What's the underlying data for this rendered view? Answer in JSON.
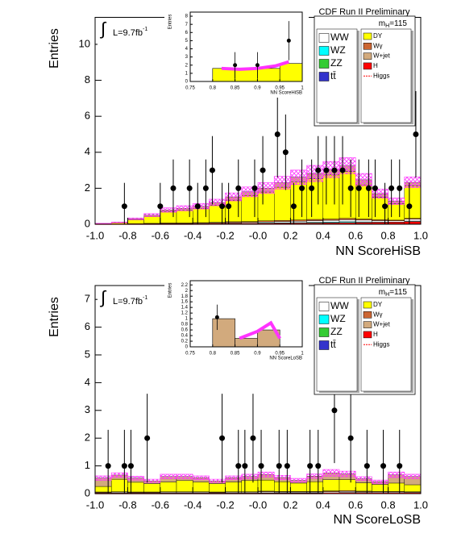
{
  "chart_data": [
    {
      "type": "stacked-histogram",
      "title": "CDF Run II Preliminary",
      "ylabel": "Entries",
      "xlabel": "NN ScoreHiSB",
      "lumi": {
        "integral": "∫",
        "text": "L=9.7fb",
        "sup": "-1"
      },
      "mass_label": {
        "main": "m",
        "sub": "H",
        "rest": "=115"
      },
      "xlim": [
        -1,
        1
      ],
      "ylim": [
        0,
        11.5
      ],
      "xticks": [
        {
          "value": -1,
          "label": "-1.0"
        },
        -0.8,
        -0.6,
        -0.4,
        -0.2,
        {
          "value": 0,
          "label": "-0.0"
        },
        0.2,
        0.4,
        0.6,
        0.8,
        {
          "value": 1,
          "label": "1.0"
        }
      ],
      "yticks": [
        0,
        2,
        4,
        6,
        8,
        10
      ],
      "bins": [
        -1,
        -0.9,
        -0.8,
        -0.7,
        -0.6,
        -0.5,
        -0.4,
        -0.3,
        -0.2,
        -0.1,
        0,
        0.1,
        0.2,
        0.3,
        0.4,
        0.5,
        0.6,
        0.7,
        0.8,
        0.9,
        1
      ],
      "series": [
        {
          "name": "WW",
          "color": "#ffffff",
          "values": [
            0,
            0,
            0.01,
            0.01,
            0.02,
            0.02,
            0.03,
            0.03,
            0.04,
            0.05,
            0.06,
            0.07,
            0.08,
            0.09,
            0.1,
            0.11,
            0.1,
            0.08,
            0.07,
            0.1
          ]
        },
        {
          "name": "WZ",
          "color": "#00ffff",
          "values": [
            0,
            0,
            0,
            0.01,
            0.01,
            0.01,
            0.01,
            0.02,
            0.02,
            0.02,
            0.03,
            0.03,
            0.04,
            0.04,
            0.04,
            0.05,
            0.04,
            0.03,
            0.03,
            0.04
          ]
        },
        {
          "name": "ZZ",
          "color": "#33cc33",
          "values": [
            0,
            0,
            0,
            0.01,
            0.01,
            0.01,
            0.01,
            0.01,
            0.02,
            0.02,
            0.02,
            0.03,
            0.03,
            0.03,
            0.04,
            0.04,
            0.03,
            0.03,
            0.02,
            0.03
          ]
        },
        {
          "name": "tt̄",
          "color": "#3333cc",
          "values": [
            0,
            0,
            0,
            0,
            0,
            0,
            0,
            0.01,
            0.01,
            0.01,
            0.01,
            0.01,
            0.01,
            0.02,
            0.02,
            0.02,
            0.02,
            0.01,
            0.01,
            0.01
          ]
        },
        {
          "name": "DY",
          "color": "#ffff00",
          "values": [
            0.03,
            0.07,
            0.22,
            0.38,
            0.62,
            0.7,
            0.78,
            0.95,
            1.2,
            1.45,
            1.6,
            1.85,
            2.1,
            2.25,
            2.45,
            2.6,
            1.9,
            1.25,
            0.9,
            1.8
          ]
        },
        {
          "name": "Wγ",
          "color": "#cc6633",
          "values": [
            0,
            0.01,
            0.02,
            0.02,
            0.03,
            0.03,
            0.04,
            0.04,
            0.05,
            0.05,
            0.06,
            0.06,
            0.07,
            0.07,
            0.07,
            0.08,
            0.06,
            0.05,
            0.04,
            0.05
          ]
        },
        {
          "name": "W+jet",
          "color": "#d2aa7d",
          "values": [
            0.01,
            0.02,
            0.05,
            0.08,
            0.1,
            0.12,
            0.13,
            0.15,
            0.18,
            0.2,
            0.22,
            0.25,
            0.27,
            0.3,
            0.3,
            0.32,
            0.28,
            0.2,
            0.15,
            0.2
          ]
        },
        {
          "name": "H",
          "color": "#ff0000",
          "values": [
            0,
            0,
            0,
            0,
            0,
            0,
            0,
            0,
            0,
            0,
            0.01,
            0.01,
            0.01,
            0.02,
            0.02,
            0.03,
            0.04,
            0.05,
            0.06,
            0.1
          ]
        },
        {
          "name": "Higgs",
          "color": "#ff0000",
          "style": "line",
          "values": [
            0,
            0,
            0,
            0,
            0,
            0,
            0,
            0.01,
            0.01,
            0.01,
            0.02,
            0.02,
            0.03,
            0.03,
            0.04,
            0.05,
            0.06,
            0.07,
            0.08,
            0.12
          ]
        }
      ],
      "syst": [
        0.01,
        0.02,
        0.05,
        0.08,
        0.12,
        0.14,
        0.15,
        0.18,
        0.22,
        0.27,
        0.3,
        0.35,
        0.4,
        0.45,
        0.45,
        0.45,
        0.35,
        0.25,
        0.18,
        0.3
      ],
      "syst_color": "#ff33ff",
      "data": {
        "x": [
          -0.82,
          -0.6,
          -0.52,
          -0.42,
          -0.37,
          -0.32,
          -0.28,
          -0.22,
          -0.18,
          -0.12,
          -0.02,
          0.03,
          0.12,
          0.17,
          0.22,
          0.27,
          0.33,
          0.37,
          0.42,
          0.47,
          0.52,
          0.57,
          0.62,
          0.68,
          0.72,
          0.78,
          0.82,
          0.87,
          0.93,
          0.97
        ],
        "values": [
          1,
          1,
          2,
          2,
          1,
          2,
          3,
          1,
          1,
          2,
          2,
          3,
          5,
          4,
          1,
          2,
          2,
          3,
          3,
          3,
          3,
          2,
          2,
          2,
          2,
          1,
          2,
          2,
          1,
          5
        ],
        "yerr": [
          1.3,
          1.3,
          1.6,
          1.6,
          1.3,
          1.6,
          1.9,
          1.3,
          1.3,
          1.6,
          1.6,
          1.9,
          2.4,
          2.1,
          1.3,
          1.6,
          1.6,
          1.9,
          1.9,
          1.9,
          1.9,
          1.6,
          1.6,
          1.6,
          1.6,
          1.3,
          1.6,
          1.6,
          1.3,
          2.4
        ]
      },
      "inset": {
        "xlabel": "NN ScoreHiSB",
        "ylabel": "Entries",
        "xlim": [
          0.75,
          1
        ],
        "ylim": [
          0,
          8.5
        ],
        "xticks": [
          0.75,
          0.8,
          0.85,
          0.9,
          0.95,
          1
        ],
        "yticks": [
          0,
          1,
          2,
          3,
          4,
          5,
          6,
          7,
          8
        ],
        "bins": [
          0.75,
          0.8,
          0.85,
          0.9,
          0.95,
          1
        ],
        "values": [
          0,
          1.6,
          1.6,
          1.6,
          2.2
        ],
        "color": "#ffff00",
        "signal": {
          "color": "#ff33ff",
          "x": [
            0.82,
            0.86,
            0.9,
            0.94,
            0.97
          ],
          "values": [
            1.6,
            1.5,
            1.6,
            1.9,
            2.4
          ]
        },
        "data": {
          "x": [
            0.85,
            0.9,
            0.97
          ],
          "values": [
            2,
            2,
            5
          ],
          "yerr": [
            1.6,
            1.6,
            2.4
          ]
        }
      }
    },
    {
      "type": "stacked-histogram",
      "title": "CDF Run II Preliminary",
      "ylabel": "Entries",
      "xlabel": "NN ScoreLoSB",
      "lumi": {
        "integral": "∫",
        "text": "L=9.7fb",
        "sup": "-1"
      },
      "mass_label": {
        "main": "m",
        "sub": "H",
        "rest": "=115"
      },
      "xlim": [
        -1,
        1
      ],
      "ylim": [
        0,
        7.5
      ],
      "xticks": [
        {
          "value": -1,
          "label": "-1.0"
        },
        -0.8,
        -0.6,
        -0.4,
        -0.2,
        {
          "value": 0,
          "label": "-0.0"
        },
        0.2,
        0.4,
        0.6,
        0.8,
        {
          "value": 1,
          "label": "1.0"
        }
      ],
      "yticks": [
        0,
        1,
        2,
        3,
        4,
        5,
        6,
        7
      ],
      "bins": [
        -1,
        -0.9,
        -0.8,
        -0.7,
        -0.6,
        -0.5,
        -0.4,
        -0.3,
        -0.2,
        -0.1,
        0,
        0.1,
        0.2,
        0.3,
        0.4,
        0.5,
        0.6,
        0.7,
        0.8,
        0.9,
        1
      ],
      "series": [
        {
          "name": "WW",
          "color": "#ffffff",
          "values": [
            0.02,
            0.03,
            0.02,
            0.02,
            0.03,
            0.03,
            0.03,
            0.02,
            0.03,
            0.03,
            0.04,
            0.03,
            0.03,
            0.03,
            0.04,
            0.04,
            0.03,
            0.03,
            0.03,
            0.02
          ]
        },
        {
          "name": "WZ",
          "color": "#00ffff",
          "values": [
            0.01,
            0.01,
            0.01,
            0.01,
            0.01,
            0.01,
            0.01,
            0.01,
            0.01,
            0.01,
            0.01,
            0.01,
            0.01,
            0.01,
            0.01,
            0.01,
            0.01,
            0.01,
            0.01,
            0.01
          ]
        },
        {
          "name": "ZZ",
          "color": "#33cc33",
          "values": [
            0.01,
            0.01,
            0.01,
            0.01,
            0.01,
            0.01,
            0.01,
            0.01,
            0.01,
            0.01,
            0.01,
            0.01,
            0.01,
            0.01,
            0.01,
            0.01,
            0.01,
            0.01,
            0.01,
            0.01
          ]
        },
        {
          "name": "tt̄",
          "color": "#3333cc",
          "values": [
            0,
            0,
            0,
            0,
            0,
            0,
            0,
            0,
            0,
            0,
            0.01,
            0.01,
            0.01,
            0.01,
            0.01,
            0.01,
            0.01,
            0,
            0,
            0
          ]
        },
        {
          "name": "DY",
          "color": "#ffff00",
          "values": [
            0.2,
            0.45,
            0.35,
            0.3,
            0.35,
            0.4,
            0.35,
            0.3,
            0.35,
            0.4,
            0.4,
            0.35,
            0.3,
            0.35,
            0.4,
            0.4,
            0.3,
            0.25,
            0.3,
            0.25
          ]
        },
        {
          "name": "Wγ",
          "color": "#cc6633",
          "values": [
            0.02,
            0.02,
            0.02,
            0.02,
            0.02,
            0.02,
            0.02,
            0.02,
            0.02,
            0.02,
            0.02,
            0.02,
            0.02,
            0.02,
            0.03,
            0.03,
            0.02,
            0.02,
            0.02,
            0.02
          ]
        },
        {
          "name": "W+jet",
          "color": "#d2aa7d",
          "values": [
            0.3,
            0.15,
            0.15,
            0.1,
            0.2,
            0.15,
            0.15,
            0.1,
            0.15,
            0.15,
            0.2,
            0.15,
            0.1,
            0.2,
            0.25,
            0.2,
            0.15,
            0.1,
            0.3,
            0.3
          ]
        },
        {
          "name": "H",
          "color": "#ff0000",
          "values": [
            0,
            0,
            0,
            0,
            0,
            0,
            0,
            0,
            0,
            0,
            0,
            0,
            0,
            0,
            0,
            0.01,
            0.01,
            0.01,
            0.01,
            0.01
          ]
        },
        {
          "name": "Higgs",
          "color": "#ff0000",
          "style": "line",
          "values": [
            0,
            0,
            0,
            0,
            0,
            0,
            0,
            0,
            0,
            0,
            0,
            0,
            0,
            0,
            0.01,
            0.01,
            0.01,
            0.01,
            0.01,
            0.01
          ]
        }
      ],
      "syst": [
        0.08,
        0.08,
        0.07,
        0.06,
        0.08,
        0.08,
        0.07,
        0.06,
        0.07,
        0.08,
        0.09,
        0.08,
        0.07,
        0.08,
        0.12,
        0.1,
        0.07,
        0.06,
        0.1,
        0.08
      ],
      "syst_color": "#ff33ff",
      "data": {
        "x": [
          -0.92,
          -0.82,
          -0.78,
          -0.68,
          -0.22,
          -0.12,
          -0.08,
          -0.03,
          0.02,
          0.13,
          0.18,
          0.32,
          0.37,
          0.47,
          0.57,
          0.67,
          0.77,
          0.87
        ],
        "values": [
          1,
          1,
          1,
          2,
          2,
          1,
          1,
          2,
          1,
          1,
          1,
          1,
          1,
          3,
          2,
          1,
          1,
          1
        ],
        "yerr": [
          1.3,
          1.3,
          1.3,
          1.6,
          1.6,
          1.3,
          1.3,
          1.6,
          1.3,
          1.3,
          1.3,
          1.3,
          1.3,
          1.9,
          1.6,
          1.3,
          1.3,
          1.3
        ]
      },
      "inset": {
        "xlabel": "NN ScoreLoSB",
        "ylabel": "Entries",
        "xlim": [
          0.75,
          1
        ],
        "ylim": [
          0,
          2.35
        ],
        "xticks": [
          0.75,
          0.8,
          0.85,
          0.9,
          0.95,
          1
        ],
        "yticks": [
          0,
          0.2,
          0.4,
          0.6,
          0.8,
          1,
          1.2,
          1.4,
          1.6,
          1.8,
          2,
          2.2
        ],
        "bins": [
          0.75,
          0.8,
          0.85,
          0.9,
          0.95,
          1
        ],
        "values": [
          0,
          1,
          0.3,
          0.6,
          0
        ],
        "color": "#d2aa7d",
        "signal": {
          "color": "#ff33ff",
          "x": [
            0.86,
            0.9,
            0.93,
            0.95
          ],
          "values": [
            0.3,
            0.55,
            0.85,
            0.3
          ]
        },
        "data": {
          "x": [
            0.81
          ],
          "values": [
            1.05
          ],
          "yerr": [
            0.45
          ]
        }
      }
    }
  ]
}
